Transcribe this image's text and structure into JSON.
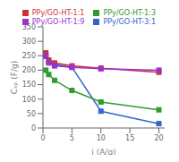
{
  "chart_data": {
    "type": "line",
    "xlabel": "i (A/g)",
    "ylabel": "Cₛₚ (F/g)",
    "x": [
      0.5,
      1,
      2,
      5,
      10,
      20
    ],
    "series": [
      {
        "name": "PPy/GO-HT-3:1",
        "color": "#3366cc",
        "marker": "square",
        "values": [
          248,
          230,
          220,
          210,
          58,
          15
        ]
      },
      {
        "name": "PPy/GO-HT-1:1",
        "color": "#cc3333",
        "marker": "square",
        "values": [
          260,
          235,
          225,
          215,
          207,
          193
        ]
      },
      {
        "name": "PPy/GO-HT-1:3",
        "color": "#339933",
        "marker": "square",
        "values": [
          200,
          185,
          165,
          130,
          90,
          63
        ]
      },
      {
        "name": "PPy/GO-HT-1:9",
        "color": "#9933cc",
        "marker": "square",
        "values": [
          250,
          225,
          215,
          210,
          205,
          200
        ]
      }
    ],
    "xlim": [
      0,
      21
    ],
    "ylim": [
      0,
      350
    ],
    "xticks": [
      0,
      5,
      10,
      15,
      20
    ],
    "yticks": [
      0,
      50,
      100,
      150,
      200,
      250,
      300,
      350
    ],
    "grid": false,
    "legend": "upper right"
  }
}
